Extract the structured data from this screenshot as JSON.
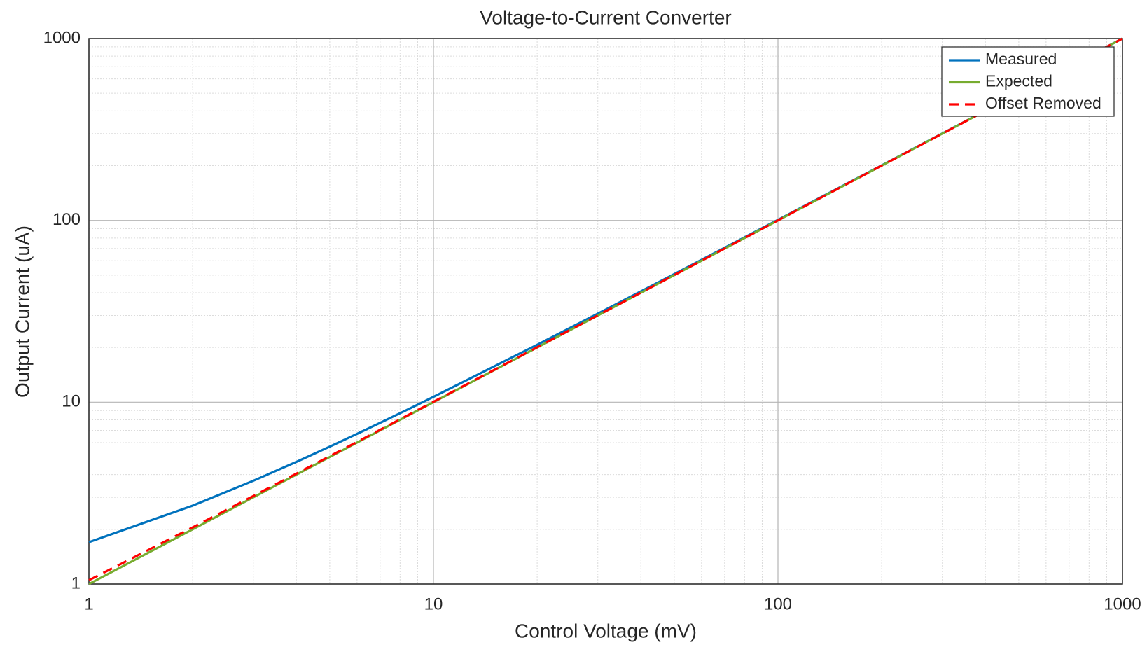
{
  "chart_data": {
    "type": "line",
    "title": "Voltage-to-Current Converter",
    "xlabel": "Control Voltage (mV)",
    "ylabel": "Output Current (uA)",
    "x": [
      1,
      2,
      3,
      4,
      5,
      6,
      7,
      8,
      9,
      10,
      20,
      30,
      40,
      50,
      60,
      70,
      80,
      90,
      100,
      200,
      300,
      400,
      500,
      600,
      700,
      800,
      900,
      1000
    ],
    "series": [
      {
        "name": "Measured",
        "color": "#0072BD",
        "dash": "solid",
        "values": [
          1.7,
          2.7,
          3.7,
          4.7,
          5.7,
          6.7,
          7.7,
          8.7,
          9.7,
          10.7,
          20.7,
          30.7,
          40.7,
          50.7,
          60.7,
          70.7,
          80.7,
          90.7,
          100.7,
          200.7,
          300.7,
          400.7,
          500.7,
          600.7,
          700.7,
          800.7,
          900.7,
          1000.7
        ]
      },
      {
        "name": "Expected",
        "color": "#77AC30",
        "dash": "solid",
        "values": [
          1,
          2,
          3,
          4,
          5,
          6,
          7,
          8,
          9,
          10,
          20,
          30,
          40,
          50,
          60,
          70,
          80,
          90,
          100,
          200,
          300,
          400,
          500,
          600,
          700,
          800,
          900,
          1000
        ]
      },
      {
        "name": "Offset Removed",
        "color": "#FF0000",
        "dash": "dashed",
        "values": [
          1.05,
          2.05,
          3.05,
          4.05,
          5.05,
          6.05,
          7.05,
          8.05,
          9.05,
          10.05,
          20.05,
          30.05,
          40.05,
          50.05,
          60.05,
          70.05,
          80.05,
          90.05,
          100.05,
          200.05,
          300.05,
          400.05,
          500.05,
          600.05,
          700.05,
          800.05,
          900.05,
          1000.05
        ]
      }
    ],
    "xlim": [
      1,
      1000
    ],
    "ylim": [
      1,
      1000
    ],
    "xticks": [
      1,
      10,
      100,
      1000
    ],
    "yticks": [
      1,
      10,
      100,
      1000
    ],
    "xscale": "log",
    "yscale": "log",
    "grid": true,
    "minor_grid": true,
    "legend": "upper right"
  }
}
